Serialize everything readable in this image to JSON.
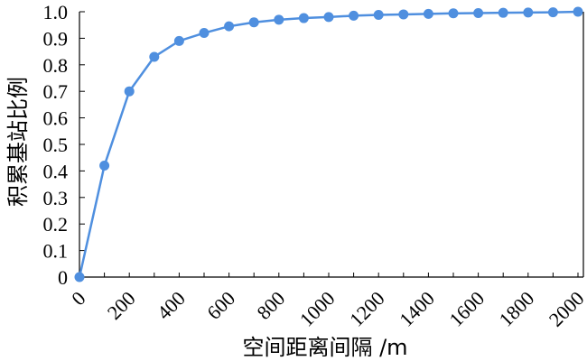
{
  "chart_data": {
    "type": "line",
    "xlabel": "空间距离间隔 /m",
    "ylabel": "积累基站比例",
    "xlim": [
      0,
      2000
    ],
    "ylim": [
      0,
      1.0
    ],
    "x_ticks": [
      "0",
      "200",
      "400",
      "600",
      "800",
      "1000",
      "1200",
      "1400",
      "1600",
      "1800",
      "2000"
    ],
    "y_ticks": [
      "0",
      "0.1",
      "0.2",
      "0.3",
      "0.4",
      "0.5",
      "0.6",
      "0.7",
      "0.8",
      "0.9",
      "1.0"
    ],
    "grid": false,
    "series": [
      {
        "color": "#4f8fdf",
        "x": [
          0,
          100,
          200,
          300,
          400,
          500,
          600,
          700,
          800,
          900,
          1000,
          1100,
          1200,
          1300,
          1400,
          1500,
          1600,
          1700,
          1800,
          1900,
          2000
        ],
        "y": [
          0.0,
          0.42,
          0.7,
          0.83,
          0.89,
          0.92,
          0.945,
          0.96,
          0.97,
          0.976,
          0.98,
          0.985,
          0.988,
          0.99,
          0.992,
          0.994,
          0.995,
          0.996,
          0.997,
          0.998,
          1.0
        ]
      }
    ]
  }
}
